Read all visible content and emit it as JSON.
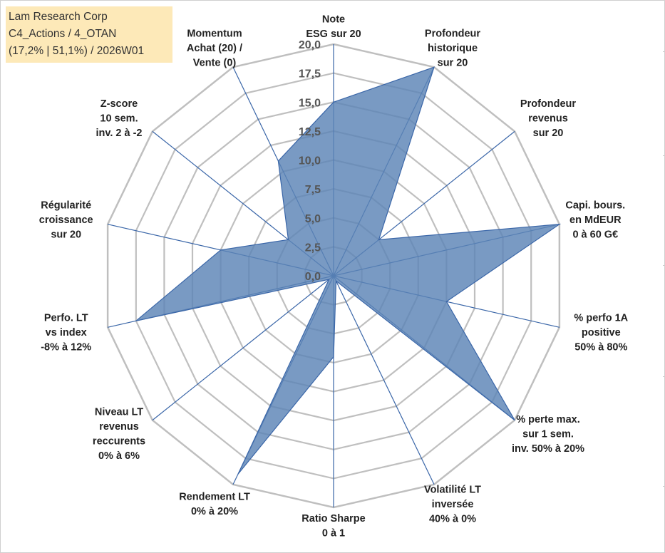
{
  "title_box": {
    "line1": "Lam Research Corp",
    "line2": "C4_Actions / 4_OTAN",
    "line3": "(17,2% | 51,1%) / 2026W01"
  },
  "chart_data": {
    "type": "radar",
    "title": "Lam Research Corp",
    "rmin": 0,
    "rmax": 20,
    "ticks": [
      "0,0",
      "2,5",
      "5,0",
      "7,5",
      "10,0",
      "12,5",
      "15,0",
      "17,5",
      "20,0"
    ],
    "tick_values": [
      0,
      2.5,
      5,
      7.5,
      10,
      12.5,
      15,
      17.5,
      20
    ],
    "gridlines": true,
    "colors": {
      "fill": "#5b84b6",
      "line": "#3a66a8",
      "grid": "#bfbfbf",
      "spoke": "#3a66a8"
    },
    "axes": [
      {
        "label": [
          "Note",
          "ESG sur 20"
        ],
        "value": 15
      },
      {
        "label": [
          "Profondeur",
          "historique",
          "sur 20"
        ],
        "value": 20
      },
      {
        "label": [
          "Profondeur",
          "revenus",
          "sur 20"
        ],
        "value": 5
      },
      {
        "label": [
          "Capi. bours.",
          "en MdEUR",
          "0 à 60 G€"
        ],
        "value": 20
      },
      {
        "label": [
          "% perfo 1A",
          "positive",
          "50% à 80%"
        ],
        "value": 10
      },
      {
        "label": [
          "% perte max.",
          "sur 1 sem.",
          "inv. 50% à 20%"
        ],
        "value": 20
      },
      {
        "label": [
          "Volatilité LT",
          "inversée",
          "40% à 0%"
        ],
        "value": 0.5
      },
      {
        "label": [
          "Ratio Sharpe",
          "0 à 1"
        ],
        "value": 7
      },
      {
        "label": [
          "Rendement LT",
          "0% à 20%"
        ],
        "value": 19
      },
      {
        "label": [
          "Niveau LT",
          "revenus",
          "reccurents",
          "0% à 6%"
        ],
        "value": 0.5
      },
      {
        "label": [
          "Perfo. LT",
          "vs index",
          "-8% à 12%"
        ],
        "value": 17.5
      },
      {
        "label": [
          "Régularité",
          "croissance",
          "sur 20"
        ],
        "value": 10
      },
      {
        "label": [
          "Z-score",
          "10 sem.",
          "inv. 2 à -2"
        ],
        "value": 5
      },
      {
        "label": [
          "Momentum",
          "Achat (20) /",
          "Vente (0)"
        ],
        "value": 11
      }
    ]
  }
}
